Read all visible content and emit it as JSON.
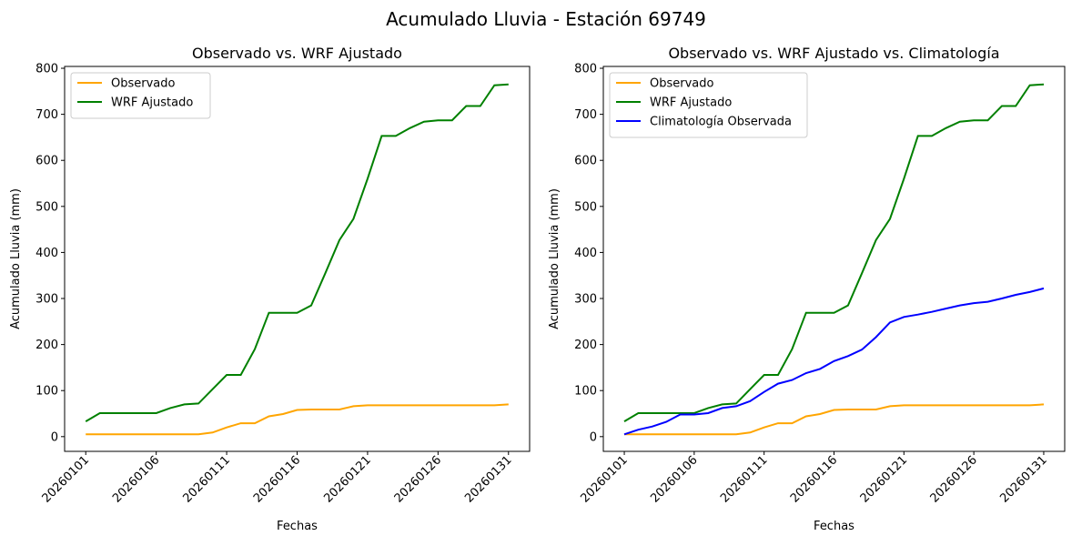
{
  "suptitle": "Acumulado Lluvia - Estación 69749",
  "chart_data": [
    {
      "type": "line",
      "title": "Observado vs. WRF Ajustado",
      "xlabel": "Fechas",
      "ylabel": "Acumulado Lluvia (mm)",
      "ylim": [
        -32,
        804
      ],
      "yticks": [
        0,
        100,
        200,
        300,
        400,
        500,
        600,
        700,
        800
      ],
      "xtick_labels": [
        "20260101",
        "20260106",
        "20260111",
        "20260116",
        "20260121",
        "20260126",
        "20260131"
      ],
      "legend": "top-left",
      "series": [
        {
          "name": "Observado",
          "color": "#ffa500",
          "values": [
            5,
            5,
            5,
            5,
            5,
            5,
            5,
            5,
            5,
            9,
            20,
            29,
            29,
            44,
            49,
            58,
            59,
            59,
            59,
            66,
            68,
            68,
            68,
            68,
            68,
            68,
            68,
            68,
            68,
            68,
            70
          ]
        },
        {
          "name": "WRF Ajustado",
          "color": "#008000",
          "values": [
            33,
            51,
            51,
            51,
            51,
            51,
            62,
            70,
            72,
            103,
            134,
            134,
            190,
            269,
            269,
            269,
            285,
            355,
            427,
            473,
            560,
            653,
            653,
            670,
            684,
            687,
            687,
            718,
            718,
            763,
            765
          ]
        }
      ]
    },
    {
      "type": "line",
      "title": "Observado vs. WRF Ajustado vs. Climatología",
      "xlabel": "Fechas",
      "ylabel": "Acumulado Lluvia (mm)",
      "ylim": [
        -32,
        804
      ],
      "yticks": [
        0,
        100,
        200,
        300,
        400,
        500,
        600,
        700,
        800
      ],
      "xtick_labels": [
        "20260101",
        "20260106",
        "20260111",
        "20260116",
        "20260121",
        "20260126",
        "20260131"
      ],
      "legend": "top-left",
      "series": [
        {
          "name": "Observado",
          "color": "#ffa500",
          "values": [
            5,
            5,
            5,
            5,
            5,
            5,
            5,
            5,
            5,
            9,
            20,
            29,
            29,
            44,
            49,
            58,
            59,
            59,
            59,
            66,
            68,
            68,
            68,
            68,
            68,
            68,
            68,
            68,
            68,
            68,
            70
          ]
        },
        {
          "name": "WRF Ajustado",
          "color": "#008000",
          "values": [
            33,
            51,
            51,
            51,
            51,
            51,
            62,
            70,
            72,
            103,
            134,
            134,
            190,
            269,
            269,
            269,
            285,
            355,
            427,
            473,
            560,
            653,
            653,
            670,
            684,
            687,
            687,
            718,
            718,
            763,
            765
          ]
        },
        {
          "name": "Climatología Observada",
          "color": "#0000ff",
          "values": [
            5,
            15,
            22,
            32,
            48,
            48,
            51,
            62,
            66,
            77,
            97,
            115,
            123,
            138,
            147,
            164,
            175,
            189,
            216,
            248,
            260,
            265,
            271,
            278,
            285,
            290,
            293,
            300,
            308,
            314,
            322
          ]
        }
      ]
    }
  ]
}
